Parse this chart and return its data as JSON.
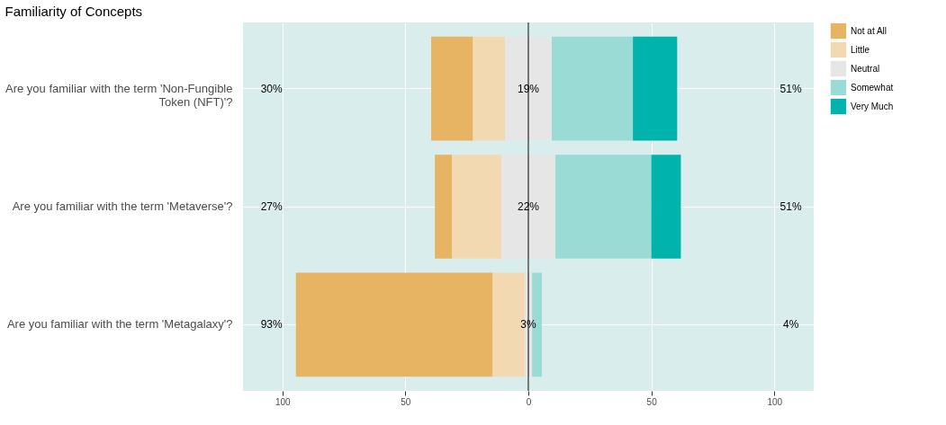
{
  "chart_data": {
    "type": "bar",
    "orientation": "horizontal",
    "title": "Familiarity of Concepts",
    "categories": [
      "Are you familiar with the term 'Non-Fungible Token (NFT)'?",
      "Are you familiar with the term 'Metaverse'?",
      "Are you familiar with the term 'Metagalaxy'?"
    ],
    "series": [
      {
        "name": "Not at All",
        "color": "#e6b462",
        "values": [
          17,
          7,
          80
        ],
        "base": [
          -39.5,
          -38,
          -94.5
        ]
      },
      {
        "name": "Little",
        "color": "#f2d9b1",
        "values": [
          13,
          20,
          13
        ],
        "base": [
          -22.5,
          -31,
          -14.5
        ]
      },
      {
        "name": "Neutral",
        "color": "#e6e6e6",
        "values": [
          19,
          22,
          3
        ],
        "base": [
          -9.5,
          -11,
          -1.5
        ]
      },
      {
        "name": "Somewhat",
        "color": "#9adbd6",
        "values": [
          33,
          39,
          4
        ],
        "base": [
          9.5,
          11,
          1.5
        ]
      },
      {
        "name": "Very Much",
        "color": "#00b3ad",
        "values": [
          18,
          12,
          null
        ],
        "base": [
          42.5,
          50,
          null
        ]
      }
    ],
    "xlim": [
      -116,
      116
    ],
    "xticks": [
      {
        "value": -100,
        "label": "100"
      },
      {
        "value": -50,
        "label": "50"
      },
      0,
      50,
      100
    ],
    "ref_lines": [
      {
        "axis": "x",
        "value": 0,
        "color": "#000000"
      }
    ],
    "annotations": [
      "30%",
      "19%",
      "51%",
      "27%",
      "22%",
      "51%",
      "93%",
      "3%",
      "4%"
    ],
    "grid": true,
    "legend": "right"
  }
}
